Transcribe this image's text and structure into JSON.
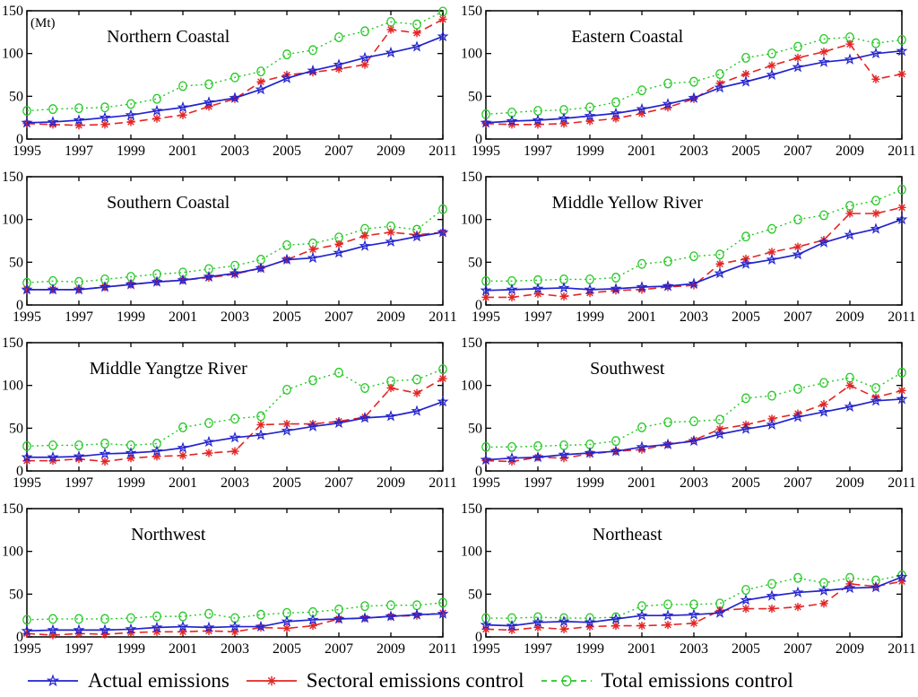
{
  "figure": {
    "background": "#ffffff"
  },
  "axes": {
    "x_range": [
      1995,
      2011
    ],
    "x_ticks": [
      1995,
      1997,
      1999,
      2001,
      2003,
      2005,
      2007,
      2009,
      2011
    ],
    "y_range": [
      0,
      150
    ],
    "y_ticks": [
      0,
      50,
      100,
      150
    ],
    "unit_label": "(Mt)"
  },
  "legend": {
    "items": [
      {
        "label": "Actual emissions",
        "color": "#2323CE",
        "marker": "star",
        "line": "solid"
      },
      {
        "label": "Sectoral emissions control",
        "color": "#E42525",
        "marker": "asterisk",
        "line": "dashed"
      },
      {
        "label": "Total emissions control",
        "color": "#26C826",
        "marker": "circle",
        "line": "dotted"
      }
    ]
  },
  "chart_data": [
    {
      "type": "line",
      "title": "Northern Coastal",
      "unit": "(Mt)",
      "ylim": [
        0,
        150
      ],
      "x": [
        1995,
        1996,
        1997,
        1998,
        1999,
        2000,
        2001,
        2002,
        2003,
        2004,
        2005,
        2006,
        2007,
        2008,
        2009,
        2010,
        2011
      ],
      "series": [
        {
          "name": "Actual emissions",
          "values": [
            19,
            20,
            22,
            25,
            28,
            33,
            37,
            43,
            48,
            58,
            71,
            80,
            87,
            95,
            101,
            108,
            120
          ]
        },
        {
          "name": "Sectoral emissions control",
          "values": [
            18,
            17,
            16,
            17,
            20,
            24,
            28,
            38,
            47,
            67,
            75,
            78,
            82,
            87,
            128,
            124,
            140
          ]
        },
        {
          "name": "Total emissions control",
          "values": [
            33,
            35,
            36,
            37,
            41,
            47,
            62,
            64,
            72,
            79,
            99,
            104,
            119,
            126,
            137,
            134,
            149
          ]
        }
      ]
    },
    {
      "type": "line",
      "title": "Eastern Coastal",
      "ylim": [
        0,
        150
      ],
      "x": [
        1995,
        1996,
        1997,
        1998,
        1999,
        2000,
        2001,
        2002,
        2003,
        2004,
        2005,
        2006,
        2007,
        2008,
        2009,
        2010,
        2011
      ],
      "series": [
        {
          "name": "Actual emissions",
          "values": [
            19,
            21,
            22,
            24,
            27,
            30,
            35,
            41,
            48,
            60,
            67,
            75,
            84,
            90,
            93,
            100,
            103
          ]
        },
        {
          "name": "Sectoral emissions control",
          "values": [
            18,
            17,
            17,
            18,
            21,
            24,
            30,
            37,
            47,
            65,
            76,
            86,
            95,
            102,
            111,
            70,
            76
          ]
        },
        {
          "name": "Total emissions control",
          "values": [
            29,
            31,
            33,
            34,
            37,
            43,
            57,
            65,
            67,
            76,
            95,
            100,
            108,
            117,
            119,
            112,
            116
          ]
        }
      ]
    },
    {
      "type": "line",
      "title": "Southern Coastal",
      "ylim": [
        0,
        150
      ],
      "x": [
        1995,
        1996,
        1997,
        1998,
        1999,
        2000,
        2001,
        2002,
        2003,
        2004,
        2005,
        2006,
        2007,
        2008,
        2009,
        2010,
        2011
      ],
      "series": [
        {
          "name": "Actual emissions",
          "values": [
            18,
            18,
            18,
            21,
            24,
            27,
            29,
            33,
            37,
            43,
            53,
            55,
            61,
            69,
            74,
            80,
            85
          ]
        },
        {
          "name": "Sectoral emissions control",
          "values": [
            18,
            18,
            18,
            21,
            24,
            27,
            29,
            32,
            36,
            43,
            53,
            65,
            71,
            81,
            85,
            82,
            85
          ]
        },
        {
          "name": "Total emissions control",
          "values": [
            26,
            28,
            27,
            30,
            33,
            36,
            38,
            42,
            46,
            53,
            70,
            72,
            79,
            89,
            92,
            88,
            112
          ]
        }
      ]
    },
    {
      "type": "line",
      "title": "Middle Yellow River",
      "ylim": [
        0,
        150
      ],
      "x": [
        1995,
        1996,
        1997,
        1998,
        1999,
        2000,
        2001,
        2002,
        2003,
        2004,
        2005,
        2006,
        2007,
        2008,
        2009,
        2010,
        2011
      ],
      "series": [
        {
          "name": "Actual emissions",
          "values": [
            17,
            18,
            19,
            20,
            18,
            19,
            21,
            22,
            25,
            37,
            48,
            53,
            59,
            73,
            82,
            89,
            100
          ]
        },
        {
          "name": "Sectoral emissions control",
          "values": [
            9,
            9,
            13,
            10,
            14,
            17,
            18,
            21,
            23,
            48,
            54,
            62,
            68,
            76,
            107,
            107,
            114
          ]
        },
        {
          "name": "Total emissions control",
          "values": [
            28,
            28,
            29,
            30,
            30,
            32,
            48,
            51,
            57,
            59,
            80,
            89,
            100,
            105,
            116,
            122,
            135
          ]
        }
      ]
    },
    {
      "type": "line",
      "title": "Middle Yangtze River",
      "ylim": [
        0,
        150
      ],
      "x": [
        1995,
        1996,
        1997,
        1998,
        1999,
        2000,
        2001,
        2002,
        2003,
        2004,
        2005,
        2006,
        2007,
        2008,
        2009,
        2010,
        2011
      ],
      "series": [
        {
          "name": "Actual emissions",
          "values": [
            16,
            16,
            17,
            20,
            21,
            23,
            27,
            34,
            39,
            42,
            47,
            52,
            56,
            62,
            64,
            70,
            81
          ]
        },
        {
          "name": "Sectoral emissions control",
          "values": [
            12,
            12,
            14,
            11,
            15,
            17,
            18,
            21,
            23,
            54,
            55,
            55,
            58,
            63,
            97,
            91,
            108
          ]
        },
        {
          "name": "Total emissions control",
          "values": [
            29,
            30,
            30,
            32,
            30,
            32,
            51,
            56,
            61,
            64,
            95,
            106,
            115,
            97,
            105,
            107,
            119
          ]
        }
      ]
    },
    {
      "type": "line",
      "title": "Southwest",
      "ylim": [
        0,
        150
      ],
      "x": [
        1995,
        1996,
        1997,
        1998,
        1999,
        2000,
        2001,
        2002,
        2003,
        2004,
        2005,
        2006,
        2007,
        2008,
        2009,
        2010,
        2011
      ],
      "series": [
        {
          "name": "Actual emissions",
          "values": [
            13,
            15,
            16,
            19,
            21,
            23,
            28,
            31,
            35,
            43,
            49,
            54,
            63,
            69,
            75,
            82,
            84
          ]
        },
        {
          "name": "Sectoral emissions control",
          "values": [
            12,
            11,
            16,
            15,
            20,
            23,
            25,
            31,
            36,
            49,
            54,
            61,
            67,
            78,
            100,
            86,
            94
          ]
        },
        {
          "name": "Total emissions control",
          "values": [
            28,
            28,
            29,
            30,
            31,
            35,
            51,
            57,
            58,
            60,
            85,
            88,
            96,
            103,
            109,
            97,
            115
          ]
        }
      ]
    },
    {
      "type": "line",
      "title": "Northwest",
      "ylim": [
        0,
        150
      ],
      "x": [
        1995,
        1996,
        1997,
        1998,
        1999,
        2000,
        2001,
        2002,
        2003,
        2004,
        2005,
        2006,
        2007,
        2008,
        2009,
        2010,
        2011
      ],
      "series": [
        {
          "name": "Actual emissions",
          "values": [
            7,
            8,
            8,
            8,
            9,
            11,
            12,
            11,
            12,
            12,
            18,
            20,
            21,
            22,
            24,
            26,
            27
          ]
        },
        {
          "name": "Sectoral emissions control",
          "values": [
            4,
            2,
            4,
            3,
            5,
            6,
            6,
            7,
            6,
            11,
            10,
            13,
            21,
            22,
            24,
            25,
            28
          ]
        },
        {
          "name": "Total emissions control",
          "values": [
            20,
            21,
            21,
            21,
            22,
            24,
            24,
            27,
            22,
            26,
            28,
            29,
            32,
            36,
            37,
            37,
            40
          ]
        }
      ]
    },
    {
      "type": "line",
      "title": "Northeast",
      "ylim": [
        0,
        150
      ],
      "x": [
        1995,
        1996,
        1997,
        1998,
        1999,
        2000,
        2001,
        2002,
        2003,
        2004,
        2005,
        2006,
        2007,
        2008,
        2009,
        2010,
        2011
      ],
      "series": [
        {
          "name": "Actual emissions",
          "values": [
            14,
            13,
            17,
            18,
            17,
            21,
            25,
            25,
            26,
            28,
            43,
            48,
            52,
            54,
            57,
            58,
            70
          ]
        },
        {
          "name": "Sectoral emissions control",
          "values": [
            9,
            8,
            11,
            9,
            12,
            13,
            13,
            14,
            16,
            31,
            33,
            33,
            35,
            39,
            62,
            59,
            65
          ]
        },
        {
          "name": "Total emissions control",
          "values": [
            22,
            22,
            23,
            22,
            22,
            23,
            36,
            38,
            38,
            39,
            55,
            62,
            69,
            63,
            69,
            66,
            72
          ]
        }
      ]
    }
  ]
}
